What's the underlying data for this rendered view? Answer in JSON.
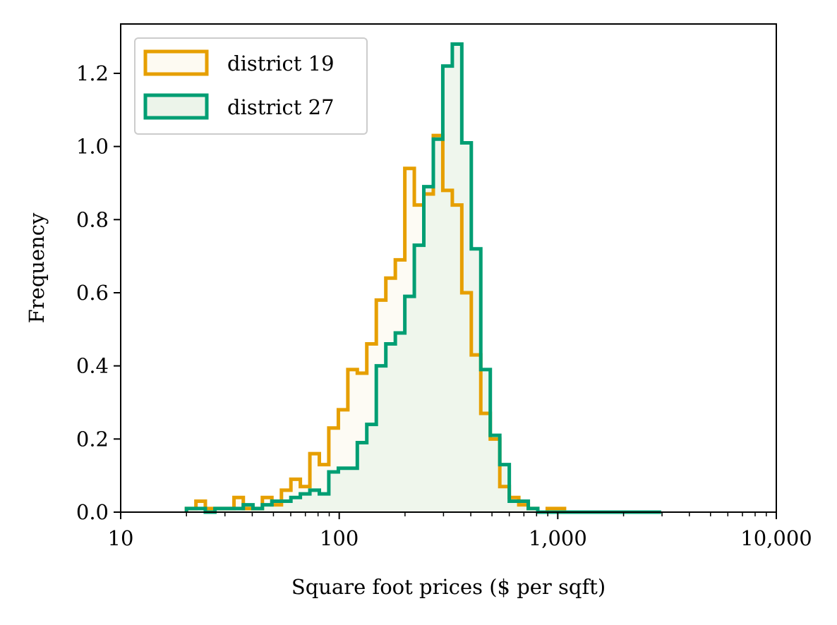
{
  "chart_data": {
    "type": "histogram",
    "title": "",
    "xlabel": "Square foot prices ($ per sqft)",
    "ylabel": "Frequency",
    "x_scale": "log",
    "xlim": [
      10,
      10000
    ],
    "ylim": [
      0,
      1.335
    ],
    "x_ticks": [
      {
        "value": 10,
        "label": "10"
      },
      {
        "value": 100,
        "label": "100"
      },
      {
        "value": 1000,
        "label": "1,000"
      },
      {
        "value": 10000,
        "label": "10,000"
      }
    ],
    "y_ticks": [
      {
        "value": 0.0,
        "label": "0.0"
      },
      {
        "value": 0.2,
        "label": "0.2"
      },
      {
        "value": 0.4,
        "label": "0.4"
      },
      {
        "value": 0.6,
        "label": "0.6"
      },
      {
        "value": 0.8,
        "label": "0.8"
      },
      {
        "value": 1.0,
        "label": "1.0"
      },
      {
        "value": 1.2,
        "label": "1.2"
      }
    ],
    "grid": false,
    "legend_position": "top-left",
    "series": [
      {
        "name": "district 19",
        "color": "#E69F00",
        "fill": "#FDFAF2",
        "edges": [
          20,
          22.1,
          24.4,
          27.0,
          29.8,
          33.0,
          36.4,
          40.3,
          44.5,
          49.2,
          54.4,
          60.1,
          66.4,
          73.4,
          81.1,
          89.6,
          99.1,
          109.5,
          121.0,
          133.7,
          147.8,
          163.4,
          180.6,
          199.6,
          220.6,
          243.8,
          269.5,
          297.8,
          329.2,
          363.8,
          402.1,
          444.4,
          491.2,
          542.9,
          600.0,
          663.2,
          733.0,
          810.1,
          895.4,
          989.6,
          1093.8
        ],
        "values": [
          0.01,
          0.03,
          0.01,
          0.01,
          0.01,
          0.04,
          0.01,
          0.01,
          0.04,
          0.02,
          0.06,
          0.09,
          0.07,
          0.16,
          0.13,
          0.23,
          0.28,
          0.39,
          0.38,
          0.46,
          0.58,
          0.64,
          0.69,
          0.94,
          0.84,
          0.87,
          1.03,
          0.88,
          0.84,
          0.6,
          0.43,
          0.27,
          0.2,
          0.07,
          0.04,
          0.02,
          0.01,
          0.0,
          0.01,
          0.01
        ]
      },
      {
        "name": "district 27",
        "color": "#009E73",
        "fill": "#ECF4EA",
        "edges": [
          20,
          22.1,
          24.4,
          27.0,
          29.8,
          33.0,
          36.4,
          40.3,
          44.5,
          49.2,
          54.4,
          60.1,
          66.4,
          73.4,
          81.1,
          89.6,
          99.1,
          109.5,
          121.0,
          133.7,
          147.8,
          163.4,
          180.6,
          199.6,
          220.6,
          243.8,
          269.5,
          297.8,
          329.2,
          363.8,
          402.1,
          444.4,
          491.2,
          542.9,
          600.0,
          663.2,
          733.0,
          810.1,
          895.4,
          989.6,
          1093.8,
          1208.9,
          1336.0,
          1476.6,
          1631.8,
          1803.5,
          1993.2,
          2202.9,
          2434.6,
          2690.7,
          2973.8
        ],
        "values": [
          0.01,
          0.01,
          0.0,
          0.01,
          0.01,
          0.01,
          0.02,
          0.01,
          0.02,
          0.03,
          0.03,
          0.04,
          0.05,
          0.06,
          0.05,
          0.11,
          0.12,
          0.12,
          0.19,
          0.24,
          0.4,
          0.46,
          0.49,
          0.59,
          0.73,
          0.89,
          1.02,
          1.22,
          1.28,
          1.01,
          0.72,
          0.39,
          0.21,
          0.13,
          0.03,
          0.03,
          0.01,
          0.0,
          0.0,
          0.0,
          0.0,
          0.0,
          0.0,
          0.0,
          0.0,
          0.0,
          0.0,
          0.0,
          0.0,
          0.0
        ]
      }
    ]
  }
}
